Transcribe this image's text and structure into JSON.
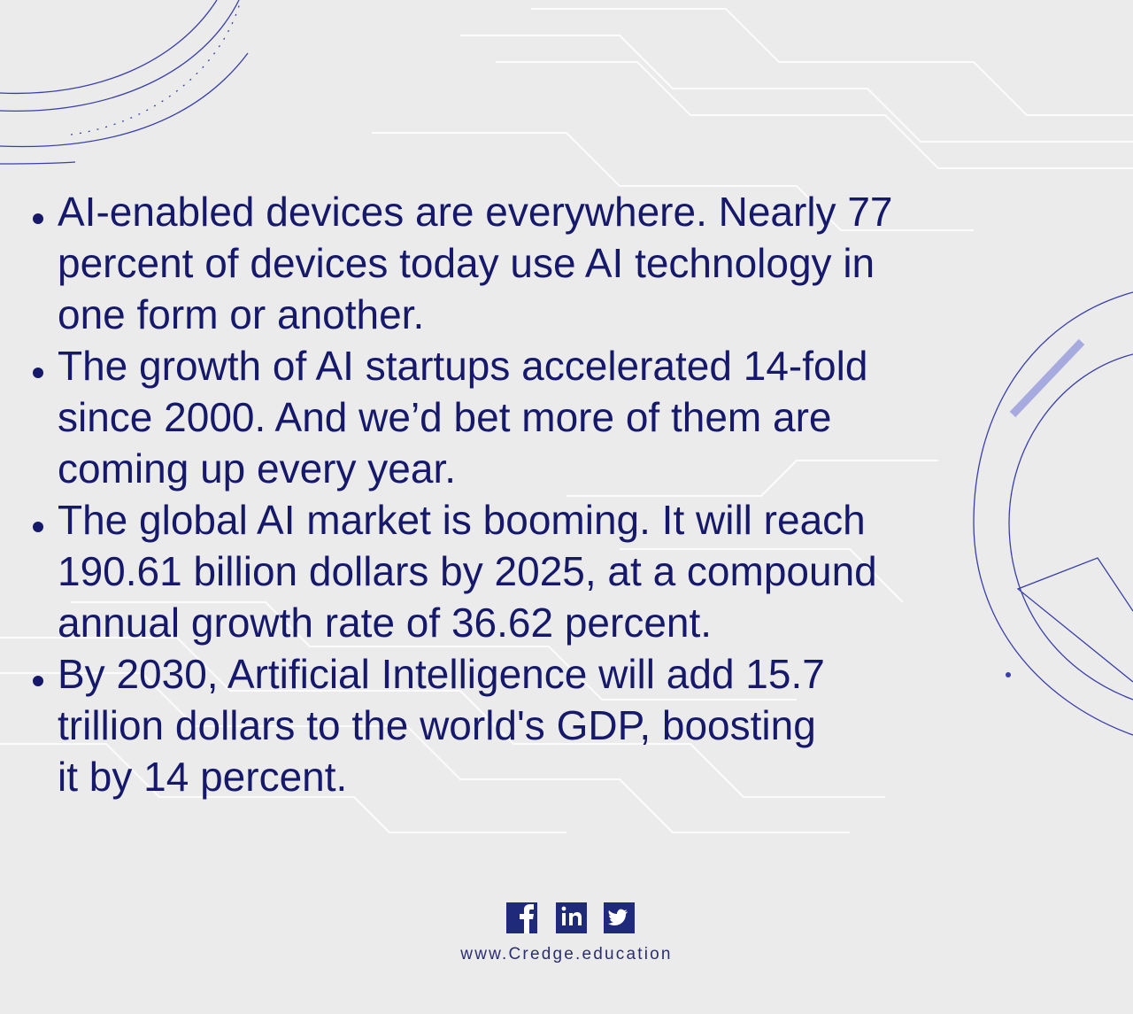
{
  "bullets": [
    {
      "lines": [
        "AI-enabled devices are everywhere. Nearly 77",
        "percent of devices today use AI technology in",
        "one form or another."
      ]
    },
    {
      "lines": [
        "The growth of AI startups accelerated 14-fold",
        "since 2000. And we’d bet more of them are",
        "coming up every year."
      ]
    },
    {
      "lines": [
        "The global AI market is booming. It will reach",
        "190.61 billion dollars by 2025, at a compound",
        "annual growth rate of 36.62 percent."
      ]
    },
    {
      "lines": [
        "By 2030, Artificial Intelligence will add 15.7",
        "trillion dollars to the world's GDP, boosting",
        "it by 14 percent."
      ]
    }
  ],
  "footer": {
    "website": "www.Credge.education"
  }
}
